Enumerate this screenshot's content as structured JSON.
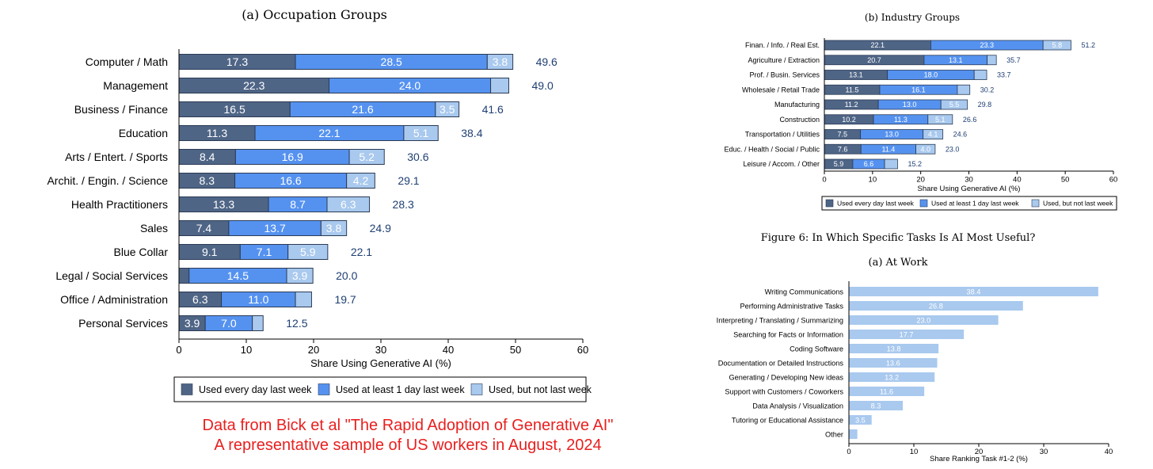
{
  "colors": {
    "daily": "#4f6586",
    "weekly": "#5592f0",
    "notweek": "#a9c9ee",
    "axis": "#000000",
    "total_text": "#1f3f73",
    "note": "#e8201f"
  },
  "note": {
    "line1": "Data from Bick et al \"The Rapid Adoption of Generative AI\"",
    "line2": "A representative sample of US workers in August, 2024"
  },
  "figure6_title": "Figure 6: In Which Specific Tasks Is AI Most Useful?",
  "chart_data": [
    {
      "type": "bar",
      "orientation": "horizontal",
      "stacked": true,
      "title": "(a) Occupation Groups",
      "xlabel": "Share Using Generative AI (%)",
      "xlim": [
        0,
        60
      ],
      "xticks": [
        0,
        10,
        20,
        30,
        40,
        50,
        60
      ],
      "legend": "bottom",
      "categories": [
        "Computer / Math",
        "Management",
        "Business / Finance",
        "Education",
        "Arts / Entert. / Sports",
        "Archit. / Engin. / Science",
        "Health Practitioners",
        "Sales",
        "Blue Collar",
        "Legal / Social Services",
        "Office / Administration",
        "Personal Services"
      ],
      "series": [
        {
          "name": "Used every day last week",
          "values": [
            17.3,
            22.3,
            16.5,
            11.3,
            8.4,
            8.3,
            13.3,
            7.4,
            9.1,
            1.5,
            6.3,
            3.9
          ],
          "labels": [
            "17.3",
            "22.3",
            "16.5",
            "11.3",
            "8.4",
            "8.3",
            "13.3",
            "7.4",
            "9.1",
            "",
            "6.3",
            "3.9"
          ]
        },
        {
          "name": "Used at least 1 day last week",
          "values": [
            28.5,
            24.0,
            21.6,
            22.1,
            16.9,
            16.6,
            8.7,
            13.7,
            7.1,
            14.5,
            11.0,
            7.0
          ],
          "labels": [
            "28.5",
            "24.0",
            "21.6",
            "22.1",
            "16.9",
            "16.6",
            "8.7",
            "13.7",
            "7.1",
            "14.5",
            "11.0",
            "7.0"
          ]
        },
        {
          "name": "Used, but not last week",
          "values": [
            3.8,
            2.7,
            3.5,
            5.1,
            5.2,
            4.2,
            6.3,
            3.8,
            5.9,
            3.9,
            2.4,
            1.6
          ],
          "labels": [
            "3.8",
            "",
            "3.5",
            "5.1",
            "5.2",
            "4.2",
            "6.3",
            "3.8",
            "5.9",
            "3.9",
            "",
            ""
          ]
        }
      ],
      "totals": [
        "49.6",
        "49.0",
        "41.6",
        "38.4",
        "30.6",
        "29.1",
        "28.3",
        "24.9",
        "22.1",
        "20.0",
        "19.7",
        "12.5"
      ]
    },
    {
      "type": "bar",
      "orientation": "horizontal",
      "stacked": true,
      "title": "(b) Industry Groups",
      "xlabel": "Share Using Generative AI (%)",
      "xlim": [
        0,
        60
      ],
      "xticks": [
        0,
        10,
        20,
        30,
        40,
        50,
        60
      ],
      "legend": "bottom",
      "categories": [
        "Finan. / Info. / Real Est.",
        "Agriculture / Extraction",
        "Prof. / Busin. Services",
        "Wholesale / Retail Trade",
        "Manufacturing",
        "Construction",
        "Transportation / Utilities",
        "Educ. / Health / Social / Public",
        "Leisure / Accom. / Other"
      ],
      "series": [
        {
          "name": "Used every day last week",
          "values": [
            22.1,
            20.7,
            13.1,
            11.5,
            11.2,
            10.2,
            7.5,
            7.6,
            5.9
          ],
          "labels": [
            "22.1",
            "20.7",
            "13.1",
            "11.5",
            "11.2",
            "10.2",
            "7.5",
            "7.6",
            "5.9"
          ]
        },
        {
          "name": "Used at least 1 day last week",
          "values": [
            23.3,
            13.1,
            18.0,
            16.1,
            13.0,
            11.3,
            13.0,
            11.4,
            6.6
          ],
          "labels": [
            "23.3",
            "13.1",
            "18.0",
            "16.1",
            "13.0",
            "11.3",
            "13.0",
            "11.4",
            "6.6"
          ]
        },
        {
          "name": "Used, but not last week",
          "values": [
            5.8,
            1.9,
            2.6,
            2.6,
            5.5,
            5.1,
            4.1,
            4.0,
            2.7
          ],
          "labels": [
            "5.8",
            "",
            "",
            "",
            "5.5",
            "5.1",
            "4.1",
            "4.0",
            ""
          ]
        }
      ],
      "totals": [
        "51.2",
        "35.7",
        "33.7",
        "30.2",
        "29.8",
        "26.6",
        "24.6",
        "23.0",
        "15.2"
      ]
    },
    {
      "type": "bar",
      "orientation": "horizontal",
      "title": "(a) At Work",
      "xlabel": "Share Ranking Task #1-2 (%)",
      "xlim": [
        0,
        40
      ],
      "xticks": [
        0,
        10,
        20,
        30,
        40
      ],
      "categories": [
        "Writing Communications",
        "Performing Administrative Tasks",
        "Interpreting / Translating / Summarizing",
        "Searching for Facts or Information",
        "Coding Software",
        "Documentation or Detailed Instructions",
        "Generating / Developing New ideas",
        "Support with Customers / Coworkers",
        "Data Analysis / Visualization",
        "Tutoring or Educational Assistance",
        "Other"
      ],
      "values": [
        38.4,
        26.8,
        23.0,
        17.7,
        13.8,
        13.6,
        13.2,
        11.6,
        8.3,
        3.5,
        1.3
      ],
      "labels": [
        "38.4",
        "26.8",
        "23.0",
        "17.7",
        "13.8",
        "13.6",
        "13.2",
        "11.6",
        "8.3",
        "3.5",
        ""
      ]
    }
  ]
}
